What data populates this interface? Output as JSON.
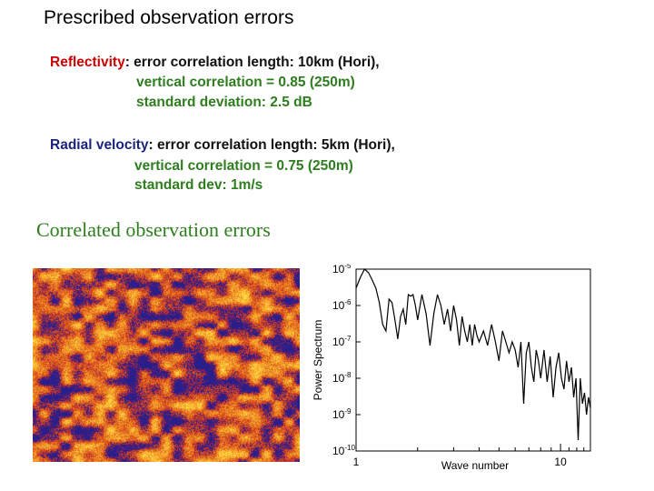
{
  "title": "Prescribed observation errors",
  "reflectivity": {
    "label": "Reflectivity",
    "line1_rest": ": error correlation length: 10km (Hori),",
    "line2": "vertical correlation = 0.85 (250m)",
    "line3": "standard deviation: 2.5 dB"
  },
  "radial_velocity": {
    "label": "Radial velocity",
    "line1_rest": ": error correlation length: 5km (Hori),",
    "line2": "vertical correlation = 0.75 (250m)",
    "line3": "standard dev: 1m/s"
  },
  "subtitle": "Correlated observation errors",
  "colors": {
    "reflectivity_label": "#cc0000",
    "velocity_label": "#1a237e",
    "secondary_text": "#2e7d1e",
    "heatmap_low": "#1f1f8f",
    "heatmap_mid": "#d42a1e",
    "heatmap_high": "#ffe13c"
  },
  "chart_data": {
    "type": "line",
    "title": "",
    "xlabel": "Wave number",
    "ylabel": "Power Spectrum",
    "x_scale": "log",
    "y_scale": "log",
    "xlim": [
      1,
      14
    ],
    "ylim": [
      1e-10,
      1e-05
    ],
    "x_ticks": [
      "1",
      "10"
    ],
    "y_ticks": [
      {
        "base": "10",
        "exp": "-5"
      },
      {
        "base": "10",
        "exp": "-6"
      },
      {
        "base": "10",
        "exp": "-7"
      },
      {
        "base": "10",
        "exp": "-8"
      },
      {
        "base": "10",
        "exp": "-9"
      },
      {
        "base": "10",
        "exp": "-10"
      }
    ],
    "series": [
      {
        "x": [
          1.0,
          1.05,
          1.1,
          1.15,
          1.2,
          1.25,
          1.3,
          1.35,
          1.4,
          1.45,
          1.5,
          1.55,
          1.6,
          1.65,
          1.7,
          1.75,
          1.8,
          1.85,
          1.9,
          1.95,
          2.0,
          2.1,
          2.2,
          2.3,
          2.4,
          2.5,
          2.6,
          2.7,
          2.8,
          2.9,
          3.0,
          3.1,
          3.2,
          3.3,
          3.4,
          3.5,
          3.6,
          3.7,
          3.8,
          3.9,
          4.0,
          4.2,
          4.4,
          4.6,
          4.8,
          5.0,
          5.2,
          5.4,
          5.6,
          5.8,
          6.0,
          6.2,
          6.4,
          6.6,
          6.8,
          7.0,
          7.2,
          7.4,
          7.6,
          7.8,
          8.0,
          8.3,
          8.6,
          8.9,
          9.2,
          9.5,
          9.8,
          10.1,
          10.4,
          10.7,
          11.0,
          11.3,
          11.6,
          11.9,
          12.2,
          12.5,
          12.8,
          13.1,
          13.4,
          13.7,
          14.0
        ],
        "y": [
          3e-06,
          6e-06,
          1e-05,
          8e-06,
          5e-06,
          3e-06,
          1.2e-06,
          3e-07,
          2e-07,
          1.5e-06,
          1.2e-06,
          4e-07,
          1.2e-07,
          5e-07,
          8e-07,
          3e-07,
          2e-06,
          1.8e-06,
          2e-06,
          1e-06,
          4e-07,
          2e-06,
          6e-07,
          8e-08,
          6e-07,
          2e-06,
          1e-06,
          3e-07,
          8e-07,
          2e-07,
          1e-06,
          4e-07,
          8e-08,
          5e-07,
          2e-07,
          1e-07,
          3e-07,
          8e-08,
          3e-07,
          1.5e-07,
          1e-07,
          2e-07,
          8e-08,
          3e-07,
          1e-07,
          3e-08,
          2e-07,
          1e-07,
          5e-08,
          1e-07,
          6e-08,
          2e-08,
          1e-07,
          2e-09,
          5e-08,
          1e-07,
          2e-08,
          8e-09,
          6e-08,
          3e-08,
          1e-08,
          6e-08,
          8e-09,
          4e-08,
          3e-09,
          2e-08,
          5e-08,
          1e-08,
          5e-09,
          3e-08,
          8e-09,
          2e-08,
          3e-09,
          1e-08,
          2e-10,
          1e-08,
          2e-09,
          4e-09,
          1e-09,
          3e-09,
          1.5e-09
        ]
      }
    ],
    "grid": false,
    "legend": "none"
  }
}
